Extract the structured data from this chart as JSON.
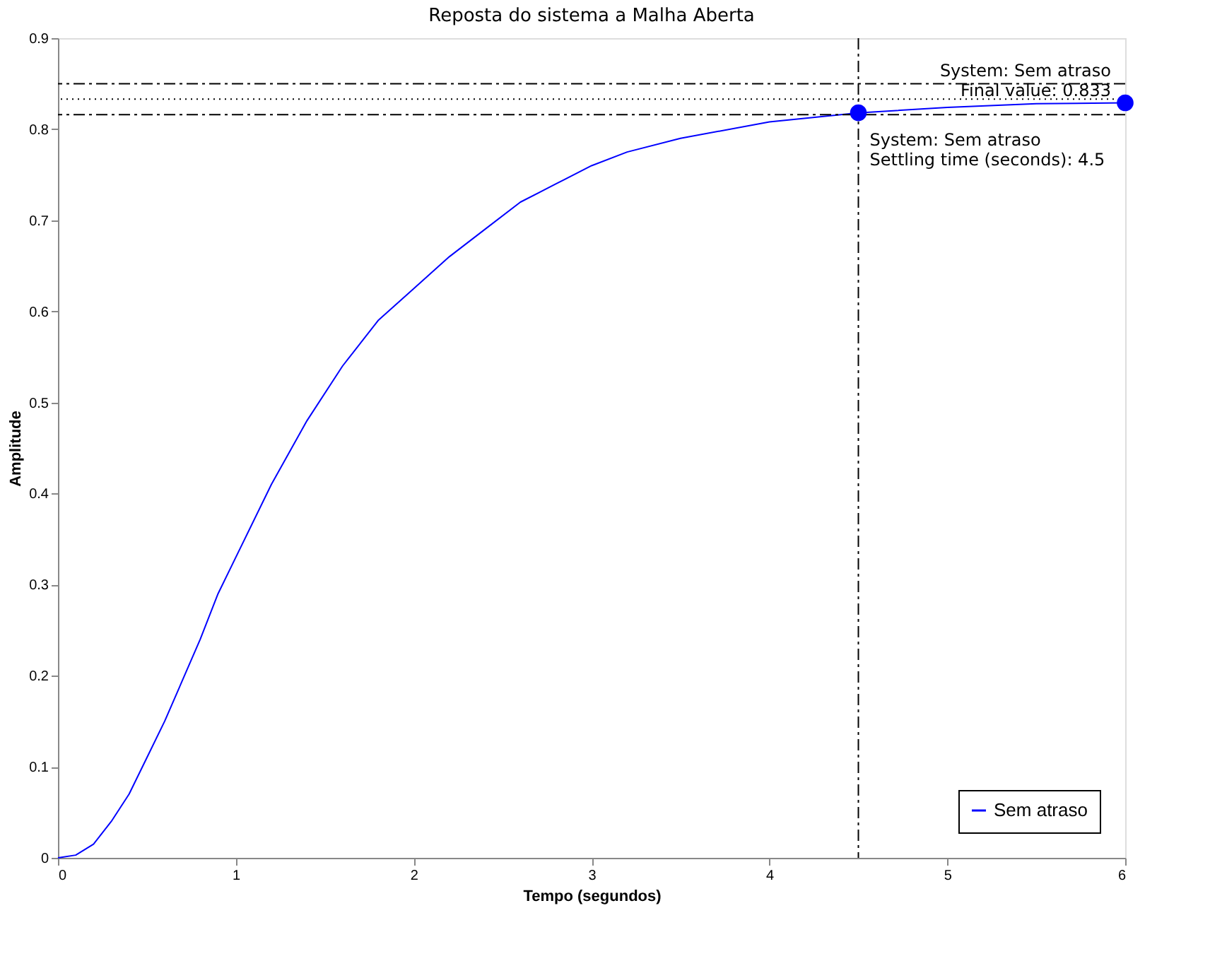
{
  "chart_data": {
    "type": "line",
    "title": "Reposta do sistema a Malha Aberta",
    "xlabel": "Tempo (segundos)",
    "ylabel": "Amplitude",
    "x": [
      0,
      0.1,
      0.2,
      0.3,
      0.4,
      0.5,
      0.6,
      0.7,
      0.8,
      0.9,
      1.0,
      1.2,
      1.4,
      1.6,
      1.8,
      2.0,
      2.2,
      2.4,
      2.6,
      2.8,
      3.0,
      3.2,
      3.5,
      4.0,
      4.5,
      5.0,
      5.5,
      6.0
    ],
    "series": [
      {
        "name": "Sem atraso",
        "color": "#0000ff",
        "values": [
          0,
          0.003,
          0.015,
          0.04,
          0.07,
          0.11,
          0.15,
          0.195,
          0.24,
          0.29,
          0.33,
          0.41,
          0.48,
          0.54,
          0.59,
          0.625,
          0.66,
          0.69,
          0.72,
          0.74,
          0.76,
          0.775,
          0.79,
          0.808,
          0.818,
          0.824,
          0.828,
          0.829
        ]
      }
    ],
    "xlim": [
      0,
      6
    ],
    "xticks": [
      0,
      1,
      2,
      3,
      4,
      5,
      6
    ],
    "ylim": [
      0,
      0.9
    ],
    "yticks": [
      0,
      0.1,
      0.2,
      0.3,
      0.4,
      0.5,
      0.6,
      0.7,
      0.8,
      0.9
    ],
    "ref_lines": [
      {
        "axis": "y",
        "value": 0.833,
        "line_style": "dotted",
        "color": "#000000"
      },
      {
        "axis": "y",
        "value": 0.85,
        "line_style": "dashed",
        "color": "#000000"
      },
      {
        "axis": "y",
        "value": 0.816,
        "line_style": "dashed",
        "color": "#000000"
      },
      {
        "axis": "x",
        "value": 4.5,
        "line_style": "dashed",
        "color": "#000000"
      }
    ],
    "annotations": [
      {
        "text": "System: Sem atraso\nFinal value: 0.833",
        "x": 6,
        "y": 0.829
      },
      {
        "text": "System: Sem atraso\nSettling time (seconds): 4.5",
        "x": 4.5,
        "y": 0.818
      }
    ],
    "legend": "bottom right",
    "grid": false,
    "line_style": "solid",
    "marker": "none"
  }
}
